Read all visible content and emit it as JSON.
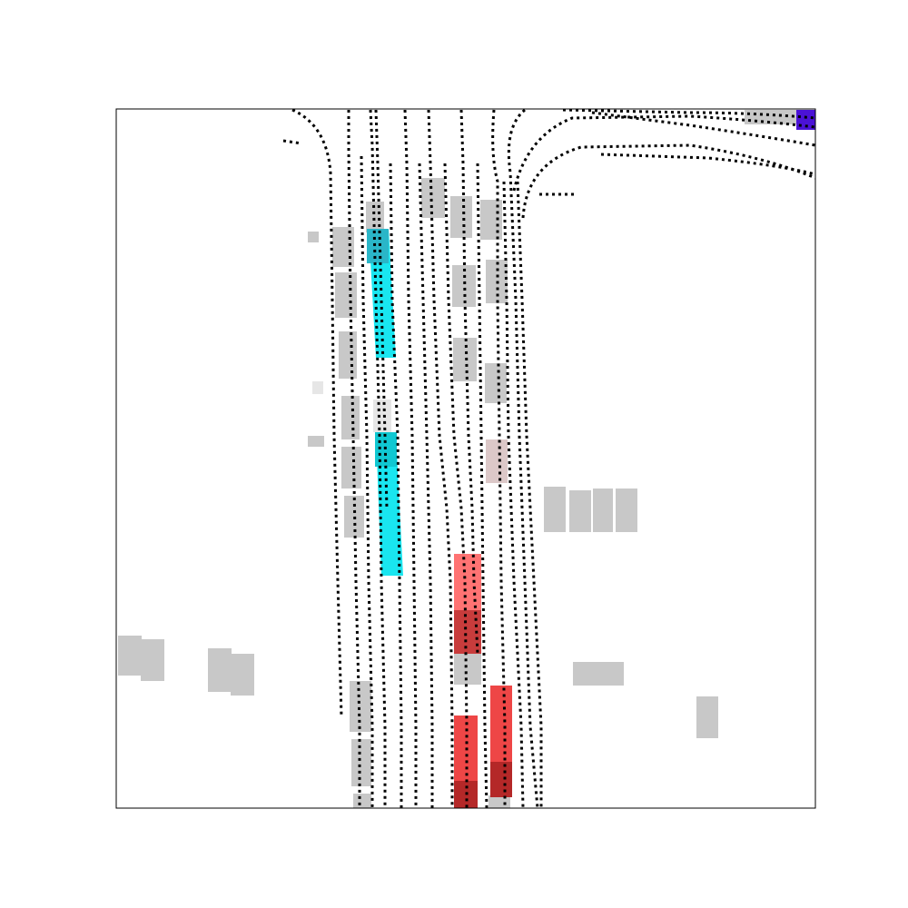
{
  "scene": {
    "type": "bev-occupancy-map",
    "background": "#ffffff",
    "frame_color": "#000000",
    "lane_color": "#000000",
    "static_object_color": "#c8c8c8",
    "light_object_color": "#e6e6e6",
    "ego_color": "#4b12d6",
    "agent_colors": {
      "cyan": "#19e6f0",
      "cyan_dark": "#10c8d2",
      "cyan_shaded": "#2ab6c8",
      "red": "#ff7373",
      "red_mid": "#ee4646",
      "red_dark": "#c83c3c",
      "red_deep": "#b42828",
      "pink_faint": "#dcc8c8"
    },
    "legend": []
  }
}
